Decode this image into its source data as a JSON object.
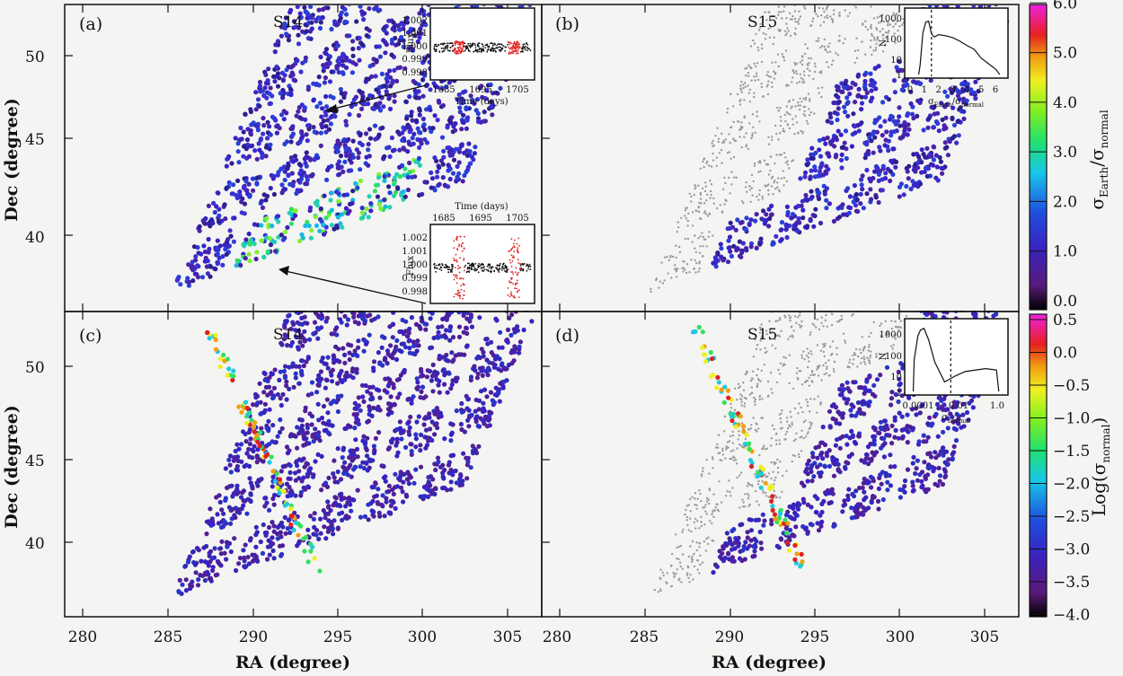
{
  "figure": {
    "xlabel": "RA (degree)",
    "ylabel": "Dec (degree)",
    "x_ticks": [
      "280",
      "285",
      "290",
      "295",
      "300",
      "305"
    ],
    "y_ticks": [
      "40",
      "45",
      "50"
    ],
    "colors": {
      "normal_star": "#4427b8",
      "outside_field": "#9a9a9a",
      "highlight": "#e02020",
      "background": "#f4f4f2"
    }
  },
  "panels": [
    {
      "label": "(a)",
      "sector": "S14"
    },
    {
      "label": "(b)",
      "sector": "S15"
    },
    {
      "label": "(c)",
      "sector": "S14"
    },
    {
      "label": "(d)",
      "sector": "S15"
    }
  ],
  "colorbar_top": {
    "label_main": "σ",
    "label_sub1": "Earth",
    "label_mid": "/σ",
    "label_sub2": "normal",
    "ticks": [
      "0.0",
      "1.0",
      "2.0",
      "3.0",
      "4.0",
      "5.0",
      "6.0"
    ]
  },
  "colorbar_bottom": {
    "label_pre": "Log(σ",
    "label_sub": "normal",
    "label_post": ")",
    "ticks": [
      "0.5",
      "0.0",
      "−0.5",
      "−1.0",
      "−1.5",
      "−2.0",
      "−2.5",
      "−3.0",
      "−3.5",
      "−4.0"
    ]
  },
  "insets": {
    "flux_top": {
      "ylabel": "Flux",
      "xlabel": "Time (days)",
      "y_ticks": [
        "1.002",
        "1.001",
        "1.000",
        "0.999",
        "0.998"
      ],
      "x_ticks": [
        "1685",
        "1695",
        "1705"
      ]
    },
    "flux_bottom": {
      "ylabel": "Flux",
      "xlabel": "Time (days)",
      "y_ticks": [
        "1.002",
        "1.001",
        "1.000",
        "0.999",
        "0.998"
      ],
      "x_ticks": [
        "1685",
        "1695",
        "1705"
      ]
    },
    "hist_b": {
      "ylabel": "N",
      "xlabel_main": "σ",
      "xlabel_sub1": "Earth",
      "xlabel_mid": "/σ",
      "xlabel_sub2": "normal",
      "y_ticks": [
        "1000",
        "100",
        "10",
        "1"
      ],
      "x_ticks": [
        "0",
        "1",
        "2",
        "3",
        "4",
        "5",
        "6"
      ]
    },
    "hist_d": {
      "ylabel": "N",
      "xlabel_main": "σ",
      "xlabel_sub": "normal",
      "y_ticks": [
        "1000",
        "100",
        "10",
        "1"
      ],
      "x_ticks": [
        "0.0001",
        "0.01",
        "1.0"
      ]
    }
  },
  "chart_data": [
    {
      "type": "scatter",
      "panel": "(a)",
      "title": "S14",
      "xlabel": "RA (degree)",
      "ylabel": "Dec (degree)",
      "xlim": [
        280,
        308
      ],
      "ylim": [
        36.3,
        53.3
      ],
      "color_encodes": "σEarth/σnormal",
      "color_range": [
        0,
        6
      ]
    },
    {
      "type": "scatter",
      "panel": "(b)",
      "title": "S15",
      "xlabel": "RA (degree)",
      "ylabel": "Dec (degree)",
      "xlim": [
        280,
        308
      ],
      "ylim": [
        36.3,
        53.3
      ],
      "color_encodes": "σEarth/σnormal",
      "color_range": [
        0,
        6
      ]
    },
    {
      "type": "scatter",
      "panel": "(c)",
      "title": "S14",
      "xlabel": "RA (degree)",
      "ylabel": "Dec (degree)",
      "xlim": [
        280,
        308
      ],
      "ylim": [
        36.3,
        53.3
      ],
      "color_encodes": "Log(σnormal)",
      "color_range": [
        -4,
        0.5
      ]
    },
    {
      "type": "scatter",
      "panel": "(d)",
      "title": "S15",
      "xlabel": "RA (degree)",
      "ylabel": "Dec (degree)",
      "xlim": [
        280,
        308
      ],
      "ylim": [
        36.3,
        53.3
      ],
      "color_encodes": "Log(σnormal)",
      "color_range": [
        -4,
        0.5
      ]
    },
    {
      "type": "histogram",
      "panel": "(b) inset",
      "xlabel": "σEarth/σnormal",
      "ylabel": "N",
      "xlim": [
        0,
        6.5
      ],
      "ylog": true,
      "ylim": [
        1,
        3000
      ],
      "x": [
        0.7,
        0.9,
        1.1,
        1.3,
        1.5,
        1.7,
        2.0,
        2.5,
        3.0,
        3.5,
        4.0,
        4.5,
        5.0,
        5.5,
        6.0
      ],
      "values": [
        3,
        200,
        800,
        900,
        180,
        120,
        160,
        140,
        110,
        70,
        40,
        25,
        8,
        4,
        2
      ],
      "threshold": 1.5
    },
    {
      "type": "histogram",
      "panel": "(d) inset",
      "xlabel": "σnormal",
      "ylabel": "N",
      "xlog": true,
      "ylog": true,
      "x": [
        0.0001,
        0.00015,
        0.0002,
        0.0003,
        0.0005,
        0.001,
        0.003,
        0.01,
        0.03,
        0.1,
        0.3,
        1.0
      ],
      "values": [
        40,
        600,
        1200,
        1500,
        400,
        30,
        3,
        6,
        10,
        12,
        14,
        12
      ],
      "threshold": 0.006
    },
    {
      "type": "line",
      "panel": "(a) top inset",
      "xlabel": "Time (days)",
      "ylabel": "Flux",
      "xlim": [
        1680,
        1712
      ],
      "ylim": [
        0.9975,
        1.0025
      ],
      "series": [
        {
          "values_approx_center": 1.0,
          "scatter": 0.0004
        }
      ]
    },
    {
      "type": "line",
      "panel": "(a) bottom inset",
      "xlabel": "Time (days)",
      "ylabel": "Flux",
      "xlim": [
        1680,
        1712
      ],
      "ylim": [
        0.9975,
        1.0025
      ],
      "series": [
        {
          "values_approx_center": 1.0,
          "scatter_normal": 0.0003,
          "scatter_earth": 0.0015
        }
      ]
    }
  ]
}
